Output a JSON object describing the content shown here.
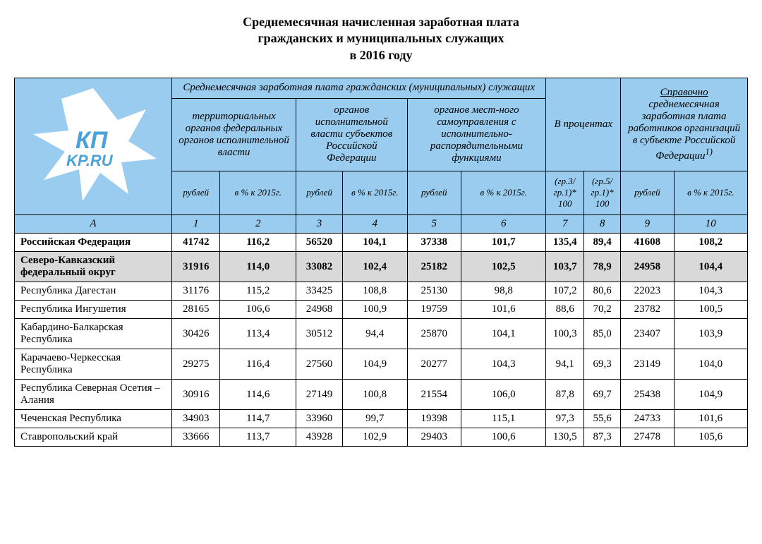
{
  "title_lines": [
    "Среднемесячная начисленная заработная плата",
    "гражданских и муниципальных служащих",
    "в 2016 году"
  ],
  "colors": {
    "header_bg": "#99ccee",
    "grey_bg": "#d9d9d9",
    "border": "#000000",
    "text": "#000000",
    "logo_fill": "#ffffff",
    "logo_text": "#4aa2d8"
  },
  "logo": {
    "kp": "КП",
    "url": "KP.RU"
  },
  "headers": {
    "group_main": "Среднемесячная заработная плата гражданских (муниципальных) служащих",
    "group_percent": "В процентах",
    "group_ref_title": "Справочно",
    "group_ref_body": "среднемесячная заработная плата работников организаций в субъекте Российской Федерации",
    "group_ref_foot": "1)",
    "sub1": "территориальных органов федеральных органов исполнительной власти",
    "sub2": "органов исполнительной власти субъектов Российской Федерации",
    "sub3": "органов мест-ного самоуправления с исполнительно-распорядительными функциями",
    "rub": "рублей",
    "pct": "в % к 2015г.",
    "gr31": "(гр.3/ гр.1)* 100",
    "gr51": "(гр.5/ гр.1)* 100",
    "colA": "А",
    "col1": "1",
    "col2": "2",
    "col3": "3",
    "col4": "4",
    "col5": "5",
    "col6": "6",
    "col7": "7",
    "col8": "8",
    "col9": "9",
    "col10": "10"
  },
  "rows": [
    {
      "name": "Российская Федерация",
      "c": [
        "41742",
        "116,2",
        "56520",
        "104,1",
        "37338",
        "101,7",
        "135,4",
        "89,4",
        "41608",
        "108,2"
      ],
      "style": "bold"
    },
    {
      "name": "Северо-Кавказский федеральный округ",
      "c": [
        "31916",
        "114,0",
        "33082",
        "102,4",
        "25182",
        "102,5",
        "103,7",
        "78,9",
        "24958",
        "104,4"
      ],
      "style": "grey"
    },
    {
      "name": "Республика Дагестан",
      "c": [
        "31176",
        "115,2",
        "33425",
        "108,8",
        "25130",
        "98,8",
        "107,2",
        "80,6",
        "22023",
        "104,3"
      ],
      "style": ""
    },
    {
      "name": "Республика Ингушетия",
      "c": [
        "28165",
        "106,6",
        "24968",
        "100,9",
        "19759",
        "101,6",
        "88,6",
        "70,2",
        "23782",
        "100,5"
      ],
      "style": ""
    },
    {
      "name": "Кабардино-Балкарская Республика",
      "c": [
        "30426",
        "113,4",
        "30512",
        "94,4",
        "25870",
        "104,1",
        "100,3",
        "85,0",
        "23407",
        "103,9"
      ],
      "style": ""
    },
    {
      "name": "Карачаево-Черкесская Республика",
      "c": [
        "29275",
        "116,4",
        "27560",
        "104,9",
        "20277",
        "104,3",
        "94,1",
        "69,3",
        "23149",
        "104,0"
      ],
      "style": ""
    },
    {
      "name": "Республика Северная Осетия – Алания",
      "c": [
        "30916",
        "114,6",
        "27149",
        "100,8",
        "21554",
        "106,0",
        "87,8",
        "69,7",
        "25438",
        "104,9"
      ],
      "style": ""
    },
    {
      "name": "Чеченская Республика",
      "c": [
        "34903",
        "114,7",
        "33960",
        "99,7",
        "19398",
        "115,1",
        "97,3",
        "55,6",
        "24733",
        "101,6"
      ],
      "style": ""
    },
    {
      "name": "Ставропольский край",
      "c": [
        "33666",
        "113,7",
        "43928",
        "102,9",
        "29403",
        "100,6",
        "130,5",
        "87,3",
        "27478",
        "105,6"
      ],
      "style": ""
    }
  ]
}
